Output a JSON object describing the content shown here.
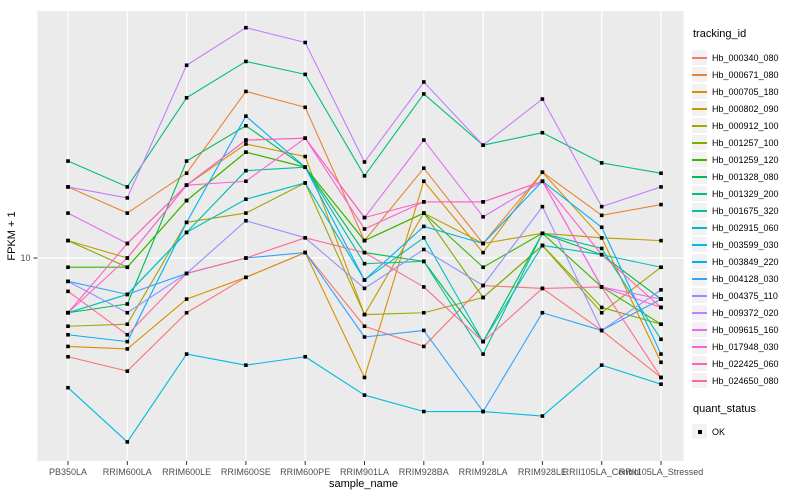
{
  "chart_data": {
    "type": "line",
    "title": "",
    "xlabel": "sample_name",
    "ylabel": "FPKM + 1",
    "y_scale": "log10",
    "y_ticks": [
      10
    ],
    "y_axis_range_approx": [
      1.6,
      93
    ],
    "grid": "vertical-category-lines-and-major-y",
    "panel_bg": "#EBEBEB",
    "grid_color": "#FFFFFF",
    "key_bg": "#F2F2F2",
    "marker_color": "#000000",
    "marker_shape": "square",
    "axis_text_color": "#4D4D4D",
    "tick_color": "#333333",
    "legend": {
      "title": "tracking_id",
      "position": "right"
    },
    "legend2": {
      "title": "quant_status",
      "items": [
        {
          "label": "OK",
          "marker": "black-square"
        }
      ]
    },
    "categories": [
      "PB350LA",
      "RRIM600LA",
      "RRIM600LE",
      "RRIM600SE",
      "RRIM600PE",
      "RRIM901LA",
      "RRIM928BA",
      "RRIM928LA",
      "RRIM928LE",
      "RRII105LA_Control",
      "RRII105LA_Stressed"
    ],
    "series": [
      {
        "name": "Hb_000340_080",
        "color": "#F8766D",
        "values": [
          4.1,
          3.6,
          6.1,
          8.4,
          10.5,
          5.4,
          4.5,
          7.8,
          7.6,
          5.2,
          3.4
        ]
      },
      {
        "name": "Hb_000671_080",
        "color": "#EA8331",
        "values": [
          19,
          15,
          21.5,
          45,
          39,
          11.7,
          22.5,
          11.4,
          21.7,
          14.7,
          16.2
        ]
      },
      {
        "name": "Hb_000705_180",
        "color": "#D89000",
        "values": [
          4.5,
          4.4,
          6.9,
          8.4,
          10.5,
          3.4,
          20,
          10.5,
          21.7,
          12,
          3.9
        ]
      },
      {
        "name": "Hb_000802_090",
        "color": "#C09B00",
        "values": [
          11.7,
          10,
          19.3,
          28,
          25,
          6.0,
          15,
          11.4,
          12.5,
          12,
          11.7
        ]
      },
      {
        "name": "Hb_000912_100",
        "color": "#A3A500",
        "values": [
          5.4,
          5.5,
          13.8,
          15,
          19.7,
          6.0,
          6.1,
          7.0,
          11.2,
          6.1,
          9.2
        ]
      },
      {
        "name": "Hb_001257_100",
        "color": "#7CAE00",
        "values": [
          11.7,
          9.2,
          16.8,
          26,
          22.7,
          11.7,
          15,
          7.0,
          11.2,
          6.4,
          5.5
        ]
      },
      {
        "name": "Hb_001259_120",
        "color": "#39B600",
        "values": [
          9.2,
          9.2,
          16.8,
          26,
          22.7,
          11.7,
          15,
          9.2,
          12.5,
          7.7,
          5.5
        ]
      },
      {
        "name": "Hb_001328_080",
        "color": "#00BB4E",
        "values": [
          6.1,
          6.6,
          24,
          33,
          22.7,
          10.5,
          9.7,
          4.7,
          12.5,
          10.3,
          6.9
        ]
      },
      {
        "name": "Hb_001329_200",
        "color": "#00BF7D",
        "values": [
          24,
          19,
          42.5,
          59,
          52.5,
          21,
          44,
          27.7,
          31,
          23.6,
          21.5
        ]
      },
      {
        "name": "Hb_001675_320",
        "color": "#00C1A3",
        "values": [
          6.1,
          7.2,
          12.6,
          22,
          22.7,
          9.5,
          9.7,
          4.2,
          12.5,
          10.9,
          4.8
        ]
      },
      {
        "name": "Hb_002915_060",
        "color": "#00BFC4",
        "values": [
          6.1,
          7.2,
          12.6,
          17,
          19.7,
          8.2,
          12,
          4.7,
          11.2,
          10.3,
          9.2
        ]
      },
      {
        "name": "Hb_003599_030",
        "color": "#00BAE0",
        "values": [
          3.1,
          1.9,
          4.2,
          3.8,
          4.1,
          2.9,
          2.5,
          2.5,
          2.4,
          3.8,
          3.2
        ]
      },
      {
        "name": "Hb_003849_220",
        "color": "#00B0F6",
        "values": [
          5.0,
          4.7,
          13.8,
          36,
          22.7,
          8.2,
          13.3,
          11.4,
          20,
          13.2,
          4.2
        ]
      },
      {
        "name": "Hb_004128_030",
        "color": "#35A2FF",
        "values": [
          8.1,
          7.2,
          8.7,
          10,
          10.5,
          4.9,
          5.2,
          2.5,
          6.1,
          5.2,
          6.9
        ]
      },
      {
        "name": "Hb_004375_110",
        "color": "#9590FF",
        "values": [
          8.1,
          6.1,
          8.7,
          14,
          12,
          7.6,
          10.8,
          7.8,
          15.9,
          5.2,
          7.5
        ]
      },
      {
        "name": "Hb_009372_020",
        "color": "#C77CFF",
        "values": [
          19,
          17.2,
          57,
          80,
          70,
          23.8,
          49,
          27.7,
          42,
          15.9,
          19
        ]
      },
      {
        "name": "Hb_009615_160",
        "color": "#E76BF3",
        "values": [
          15,
          11.4,
          19.3,
          29,
          29.5,
          14.4,
          29,
          14.5,
          20,
          7.7,
          6.9
        ]
      },
      {
        "name": "Hb_017948_030",
        "color": "#FA62DB",
        "values": [
          6.1,
          10,
          19.3,
          20,
          29.5,
          13,
          16.6,
          16.6,
          20,
          7.7,
          6.4
        ]
      },
      {
        "name": "Hb_022425_060",
        "color": "#FF62BC",
        "values": [
          6.1,
          11.4,
          19.3,
          29,
          29.5,
          14.4,
          16.6,
          16.6,
          20,
          10.3,
          6.4
        ]
      },
      {
        "name": "Hb_024650_080",
        "color": "#FF6A98",
        "values": [
          7.4,
          5.0,
          8.7,
          10,
          12,
          10.5,
          7.7,
          4.7,
          7.6,
          7.7,
          3.4
        ]
      }
    ]
  }
}
